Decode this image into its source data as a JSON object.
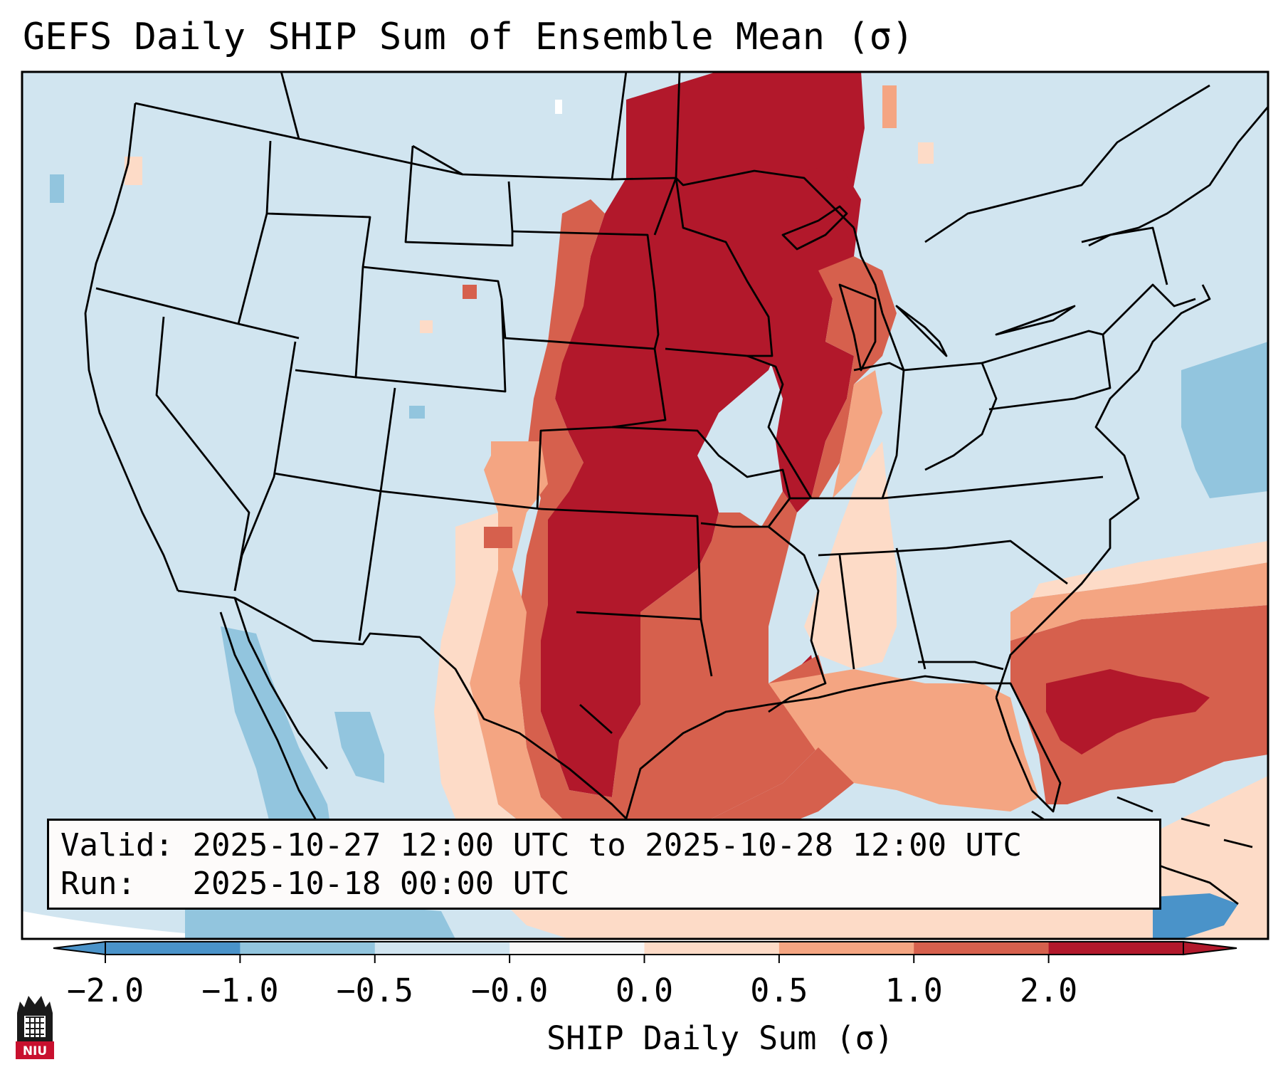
{
  "title": "GEFS Daily SHIP Sum of Ensemble Mean (σ)",
  "info": {
    "valid_label": "Valid:",
    "valid_value": "2025-10-27 12:00 UTC to 2025-10-28 12:00 UTC",
    "run_label": "Run:",
    "run_value": "2025-10-18 00:00 UTC"
  },
  "colorbar": {
    "label": "SHIP Daily Sum (σ)",
    "ticks": [
      "−2.0",
      "−1.0",
      "−0.5",
      "−0.0",
      "0.0",
      "0.5",
      "1.0",
      "2.0"
    ],
    "colors": [
      "#4a93c9",
      "#92c5de",
      "#d1e5f0",
      "#f7f7f7",
      "#fddbc7",
      "#f4a582",
      "#d6604d",
      "#b2182b"
    ],
    "extend": "both"
  },
  "map": {
    "projection": "lambert-conformal",
    "region": "CONUS",
    "background_color": "#d1e5f0",
    "features": [
      "state-borders",
      "country-borders",
      "coastlines"
    ]
  },
  "logo": {
    "text": "NIU",
    "colors": [
      "#1a1a1a",
      "#c8102e"
    ]
  }
}
